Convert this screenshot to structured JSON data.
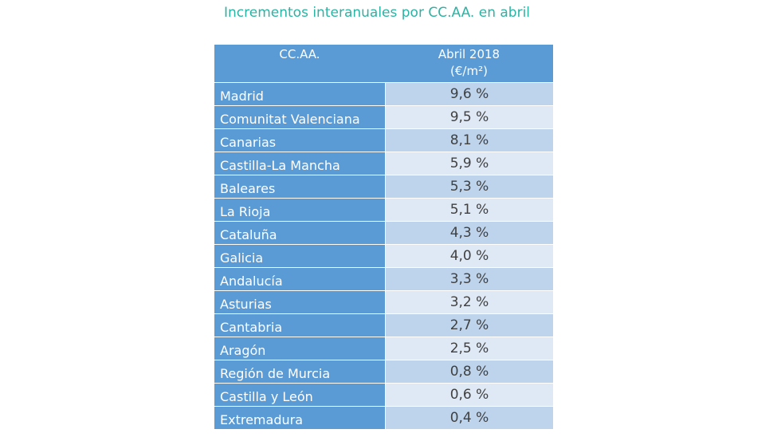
{
  "title": "Incrementos interanuales por CC.AA. en abril",
  "table": {
    "headers": {
      "region": "CC.AA.",
      "value_line1": "Abril 2018",
      "value_line2": "(€/m²)"
    },
    "rows": [
      {
        "region": "Madrid",
        "value": "9,6 %"
      },
      {
        "region": "Comunitat Valenciana",
        "value": "9,5 %"
      },
      {
        "region": "Canarias",
        "value": "8,1 %"
      },
      {
        "region": "Castilla-La Mancha",
        "value": "5,9 %"
      },
      {
        "region": "Baleares",
        "value": "5,3 %"
      },
      {
        "region": "La Rioja",
        "value": "5,1 %"
      },
      {
        "region": "Cataluña",
        "value": "4,3 %"
      },
      {
        "region": "Galicia",
        "value": "4,0 %"
      },
      {
        "region": "Andalucía",
        "value": "3,3 %"
      },
      {
        "region": "Asturias",
        "value": "3,2 %"
      },
      {
        "region": "Cantabria",
        "value": "2,7 %"
      },
      {
        "region": "Aragón",
        "value": "2,5 %"
      },
      {
        "region": "Región de Murcia",
        "value": "0,8 %"
      },
      {
        "region": "Castilla y León",
        "value": "0,6 %"
      },
      {
        "region": "Extremadura",
        "value": "0,4 %"
      }
    ]
  },
  "colors": {
    "title": "#2bb3a4",
    "header_bg": "#5b9bd5",
    "row_alt_1": "#bed4ec",
    "row_alt_2": "#dfe9f6"
  }
}
